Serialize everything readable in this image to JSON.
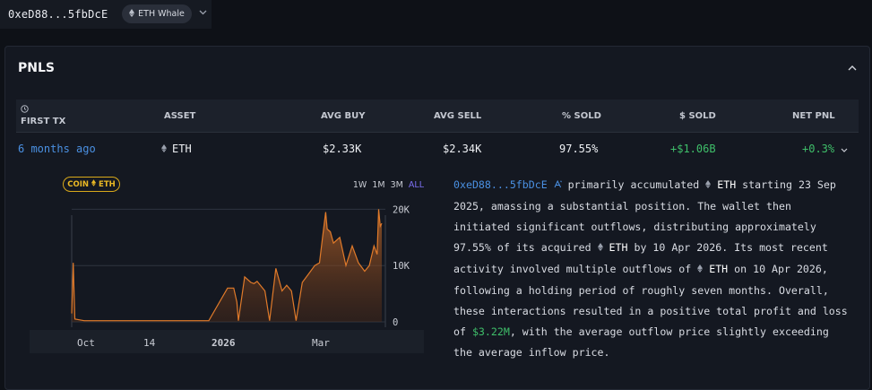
{
  "header": {
    "address": "0xeD88...5fbDcE",
    "badge_icon": "eth-diamond-icon",
    "badge_label": "ETH Whale"
  },
  "panel": {
    "title": "PNLS"
  },
  "table": {
    "headers": {
      "first_tx": "FIRST TX",
      "asset": "ASSET",
      "avg_buy": "AVG BUY",
      "avg_sell": "AVG SELL",
      "pct_sold": "% SOLD",
      "usd_sold": "$ SOLD",
      "net_pnl": "NET PNL"
    },
    "row": {
      "first_tx": "6 months ago",
      "asset": "ETH",
      "avg_buy": "$2.33K",
      "avg_sell": "$2.34K",
      "pct_sold": "97.55%",
      "usd_sold": "+$1.06B",
      "net_pnl": "+0.3%"
    }
  },
  "chart_controls": {
    "coin_label_prefix": "COIN",
    "coin_label_asset": "ETH",
    "ranges": [
      "1W",
      "1M",
      "3M",
      "ALL"
    ],
    "active_range": "ALL"
  },
  "chart_data": {
    "type": "area",
    "x": [
      "2025-09-23",
      "2025-09-24",
      "2025-09-25",
      "2025-10-01",
      "2025-10-15",
      "2025-11-01",
      "2025-11-15",
      "2025-12-01",
      "2025-12-10",
      "2025-12-20",
      "2026-01-01",
      "2026-01-05",
      "2026-01-07",
      "2026-01-08",
      "2026-01-12",
      "2026-01-16",
      "2026-01-18",
      "2026-01-20",
      "2026-01-25",
      "2026-01-28",
      "2026-02-01",
      "2026-02-05",
      "2026-02-08",
      "2026-02-11",
      "2026-02-14",
      "2026-02-18",
      "2026-02-22",
      "2026-02-26",
      "2026-03-01",
      "2026-03-03",
      "2026-03-05",
      "2026-03-06",
      "2026-03-08",
      "2026-03-10",
      "2026-03-14",
      "2026-03-18",
      "2026-03-22",
      "2026-03-26",
      "2026-03-30",
      "2026-04-02",
      "2026-04-05",
      "2026-04-07",
      "2026-04-08",
      "2026-04-09",
      "2026-04-10"
    ],
    "values": [
      1500,
      10500,
      500,
      200,
      200,
      200,
      200,
      200,
      200,
      200,
      6000,
      6000,
      3500,
      200,
      8000,
      7000,
      6800,
      7200,
      5500,
      200,
      9500,
      5500,
      6500,
      5500,
      200,
      7000,
      8500,
      10000,
      10500,
      15000,
      19500,
      16500,
      16000,
      14000,
      15000,
      10000,
      13500,
      10500,
      9000,
      10000,
      13500,
      12000,
      20000,
      17000,
      17500
    ],
    "xlabel": "",
    "ylabel": "",
    "x_ticks": [
      "Oct",
      "14",
      "2026",
      "Mar"
    ],
    "y_ticks": [
      "0",
      "10K",
      "20K"
    ],
    "ylim": [
      0,
      21500
    ],
    "grid": true,
    "color": "#e07a2a"
  },
  "description": {
    "address": "0xeD88...5fbDcE",
    "p1": "primarily accumulated",
    "asset1": "ETH",
    "p2": "starting 23 Sep 2025, amassing a substantial position. The wallet then initiated significant outflows, distributing approximately 97.55% of its acquired",
    "asset2": "ETH",
    "p3": "by 10 Apr 2026. Its most recent activity involved multiple outflows of",
    "asset3": "ETH",
    "p4": "on 10 Apr 2026, following a holding period of roughly seven months. Overall, these interactions resulted in a positive total profit and loss of",
    "pnl": "$3.22M",
    "p5": ", with the average outflow price slightly exceeding the average inflow price."
  },
  "colors": {
    "link": "#4a90e2",
    "positive": "#3fbf6a",
    "accent_gold": "#e9b824",
    "active_range": "#7c6ff0",
    "area": "#e07a2a"
  }
}
